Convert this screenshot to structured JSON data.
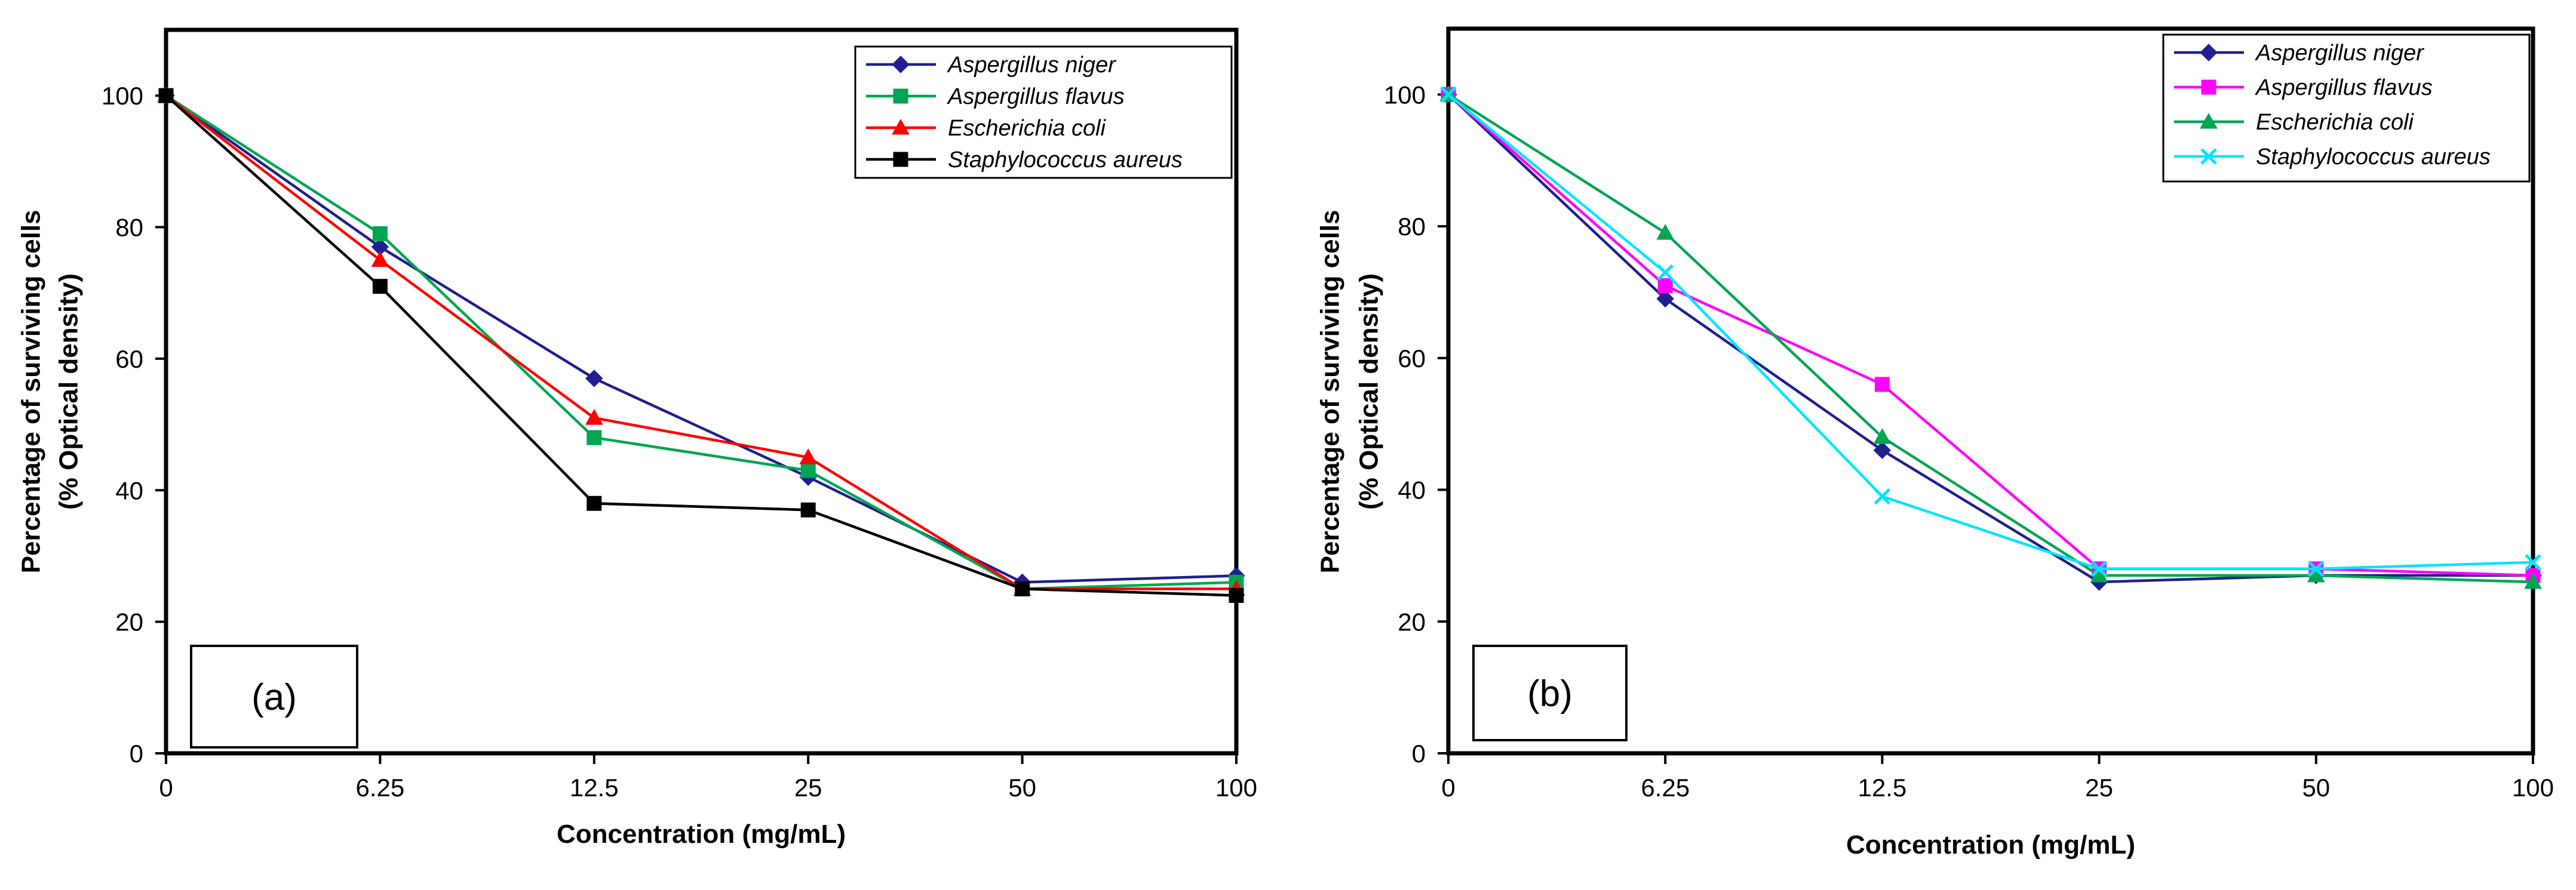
{
  "chart_data": [
    {
      "type": "line",
      "panel_label": "(a)",
      "categories": [
        "0",
        "6.25",
        "12.5",
        "25",
        "50",
        "100"
      ],
      "xlabel": "Concentration (mg/mL)",
      "ylabel_line1": "Percentage of surviving cells",
      "ylabel_line2": "(% Optical density)",
      "ylim": [
        0,
        110
      ],
      "yticks": [
        0,
        20,
        40,
        60,
        80,
        100
      ],
      "legend_position": "top-right",
      "series": [
        {
          "name": "Aspergillus niger",
          "color": "#1f1f8f",
          "marker": "diamond",
          "values": [
            100,
            77,
            57,
            42,
            26,
            27
          ]
        },
        {
          "name": "Aspergillus flavus",
          "color": "#00a650",
          "marker": "square",
          "values": [
            100,
            79,
            48,
            43,
            25,
            26
          ]
        },
        {
          "name": "Escherichia coli",
          "color": "#ff0000",
          "marker": "triangle",
          "values": [
            100,
            75,
            51,
            45,
            25,
            25
          ]
        },
        {
          "name": "Staphylococcus aureus",
          "color": "#000000",
          "marker": "square",
          "values": [
            100,
            71,
            38,
            37,
            25,
            24
          ]
        }
      ]
    },
    {
      "type": "line",
      "panel_label": "(b)",
      "categories": [
        "0",
        "6.25",
        "12.5",
        "25",
        "50",
        "100"
      ],
      "xlabel": "Concentration (mg/mL)",
      "ylabel_line1": "Percentage of surviving cells",
      "ylabel_line2": "(% Optical density)",
      "ylim": [
        0,
        110
      ],
      "yticks": [
        0,
        20,
        40,
        60,
        80,
        100
      ],
      "legend_position": "top-right",
      "series": [
        {
          "name": "Aspergillus niger",
          "color": "#1f1f8f",
          "marker": "diamond",
          "values": [
            100,
            69,
            46,
            26,
            27,
            27
          ]
        },
        {
          "name": "Aspergillus flavus",
          "color": "#ff00ff",
          "marker": "square",
          "values": [
            100,
            71,
            56,
            28,
            28,
            27
          ]
        },
        {
          "name": "Escherichia coli",
          "color": "#00a650",
          "marker": "triangle",
          "values": [
            100,
            79,
            48,
            27,
            27,
            26
          ]
        },
        {
          "name": "Staphylococcus aureus",
          "color": "#00e5ff",
          "marker": "x",
          "values": [
            100,
            73,
            39,
            28,
            28,
            29
          ]
        }
      ]
    }
  ]
}
